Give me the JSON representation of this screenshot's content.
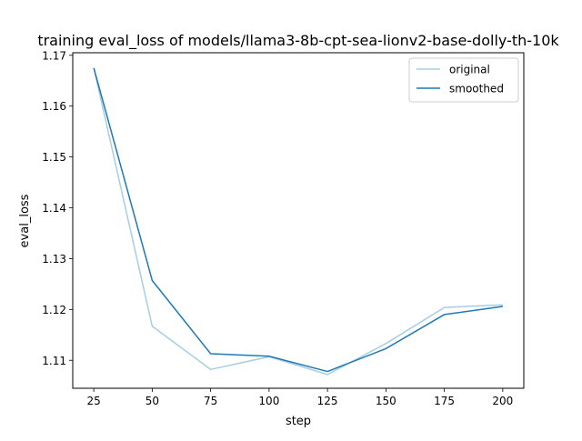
{
  "chart_data": {
    "type": "line",
    "title": "training eval_loss of models/llama3-8b-cpt-sea-lionv2-base-dolly-th-10k",
    "xlabel": "step",
    "ylabel": "eval_loss",
    "xlim": [
      16,
      209
    ],
    "ylim": [
      1.1045,
      1.1705
    ],
    "x": [
      25,
      50,
      75,
      100,
      125,
      150,
      175,
      200
    ],
    "xticks": [
      25,
      50,
      75,
      100,
      125,
      150,
      175,
      200
    ],
    "yticks": [
      1.11,
      1.12,
      1.13,
      1.14,
      1.15,
      1.16,
      1.17
    ],
    "ytick_labels": [
      "1.11",
      "1.12",
      "1.13",
      "1.14",
      "1.15",
      "1.16",
      "1.17"
    ],
    "grid": false,
    "legend_position": "top-right",
    "series": [
      {
        "name": "original",
        "color": "#a6cee3",
        "values": [
          1.1675,
          1.1167,
          1.1082,
          1.1107,
          1.1072,
          1.1133,
          1.1204,
          1.1209
        ]
      },
      {
        "name": "smoothed",
        "color": "#1f78b4",
        "values": [
          1.1675,
          1.1257,
          1.1113,
          1.1108,
          1.1078,
          1.1123,
          1.119,
          1.1206
        ]
      }
    ]
  }
}
